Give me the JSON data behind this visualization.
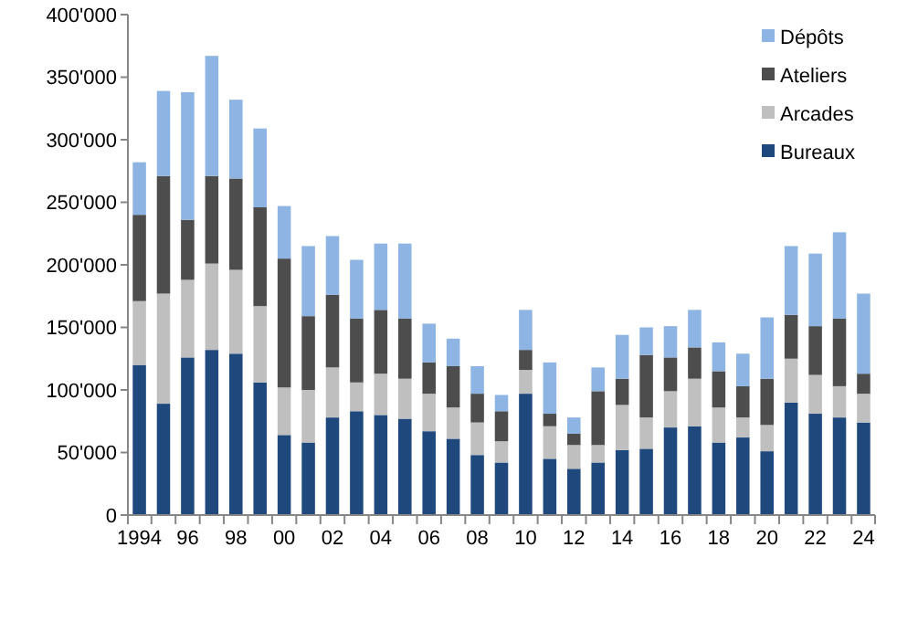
{
  "chart_data": {
    "type": "bar",
    "stacked": true,
    "categories": [
      "1994",
      null,
      "96",
      null,
      "98",
      null,
      "00",
      null,
      "02",
      null,
      "04",
      null,
      "06",
      null,
      "08",
      null,
      "10",
      null,
      "12",
      null,
      "14",
      null,
      "16",
      null,
      "18",
      null,
      "20",
      null,
      "22",
      null,
      "24"
    ],
    "series": [
      {
        "name": "Bureaux",
        "color": "#1f497d",
        "values": [
          120000,
          89000,
          126000,
          132000,
          129000,
          106000,
          64000,
          58000,
          78000,
          83000,
          80000,
          77000,
          67000,
          61000,
          48000,
          42000,
          97000,
          45000,
          37000,
          42000,
          52000,
          53000,
          70000,
          71000,
          58000,
          62000,
          51000,
          90000,
          81000,
          78000,
          74000
        ]
      },
      {
        "name": "Arcades",
        "color": "#bfbfbf",
        "values": [
          51000,
          88000,
          62000,
          69000,
          67000,
          61000,
          38000,
          42000,
          40000,
          23000,
          33000,
          32000,
          30000,
          25000,
          26000,
          17000,
          19000,
          26000,
          19000,
          14000,
          36000,
          25000,
          29000,
          38000,
          28000,
          16000,
          21000,
          35000,
          31000,
          25000,
          23000
        ]
      },
      {
        "name": "Ateliers",
        "color": "#4d4d4d",
        "values": [
          69000,
          94000,
          48000,
          70000,
          73000,
          79000,
          103000,
          59000,
          58000,
          51000,
          51000,
          48000,
          25000,
          33000,
          23000,
          24000,
          16000,
          10000,
          9000,
          43000,
          21000,
          50000,
          27000,
          25000,
          29000,
          25000,
          37000,
          35000,
          39000,
          54000,
          16000
        ]
      },
      {
        "name": "Dépôts",
        "color": "#8db4e2",
        "values": [
          42000,
          68000,
          102000,
          96000,
          63000,
          63000,
          42000,
          56000,
          47000,
          47000,
          53000,
          60000,
          31000,
          22000,
          22000,
          13000,
          32000,
          41000,
          13000,
          19000,
          35000,
          22000,
          25000,
          30000,
          23000,
          26000,
          49000,
          55000,
          58000,
          69000,
          64000
        ]
      }
    ],
    "ylim": [
      0,
      400000
    ],
    "yticks": [
      0,
      {
        "value": 50000,
        "label": "50'000"
      },
      {
        "value": 100000,
        "label": "100'000"
      },
      {
        "value": 150000,
        "label": "150'000"
      },
      {
        "value": 200000,
        "label": "200'000"
      },
      {
        "value": 250000,
        "label": "250'000"
      },
      {
        "value": 300000,
        "label": "300'000"
      },
      {
        "value": 350000,
        "label": "350'000"
      },
      {
        "value": 400000,
        "label": "400'000"
      }
    ],
    "legend": "top right",
    "grid": false
  }
}
